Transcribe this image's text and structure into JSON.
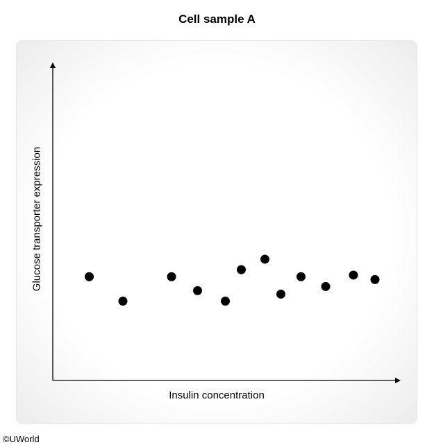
{
  "chart_data": {
    "type": "scatter",
    "title": "Cell sample A",
    "xlabel": "Insulin concentration",
    "ylabel": "Glucose transporter expression",
    "xlim": [
      0,
      100
    ],
    "ylim": [
      0,
      100
    ],
    "grid": false,
    "ticks": false,
    "points": [
      {
        "x": 10.5,
        "y": 32.7
      },
      {
        "x": 20.2,
        "y": 25.0
      },
      {
        "x": 34.2,
        "y": 32.7
      },
      {
        "x": 41.7,
        "y": 28.3
      },
      {
        "x": 49.7,
        "y": 25.0
      },
      {
        "x": 54.3,
        "y": 34.9
      },
      {
        "x": 61.1,
        "y": 38.2
      },
      {
        "x": 65.7,
        "y": 27.2
      },
      {
        "x": 71.5,
        "y": 32.7
      },
      {
        "x": 78.6,
        "y": 29.6
      },
      {
        "x": 86.6,
        "y": 33.2
      },
      {
        "x": 92.8,
        "y": 31.8
      }
    ],
    "marker_color": "#000000"
  },
  "credit": "©UWorld"
}
